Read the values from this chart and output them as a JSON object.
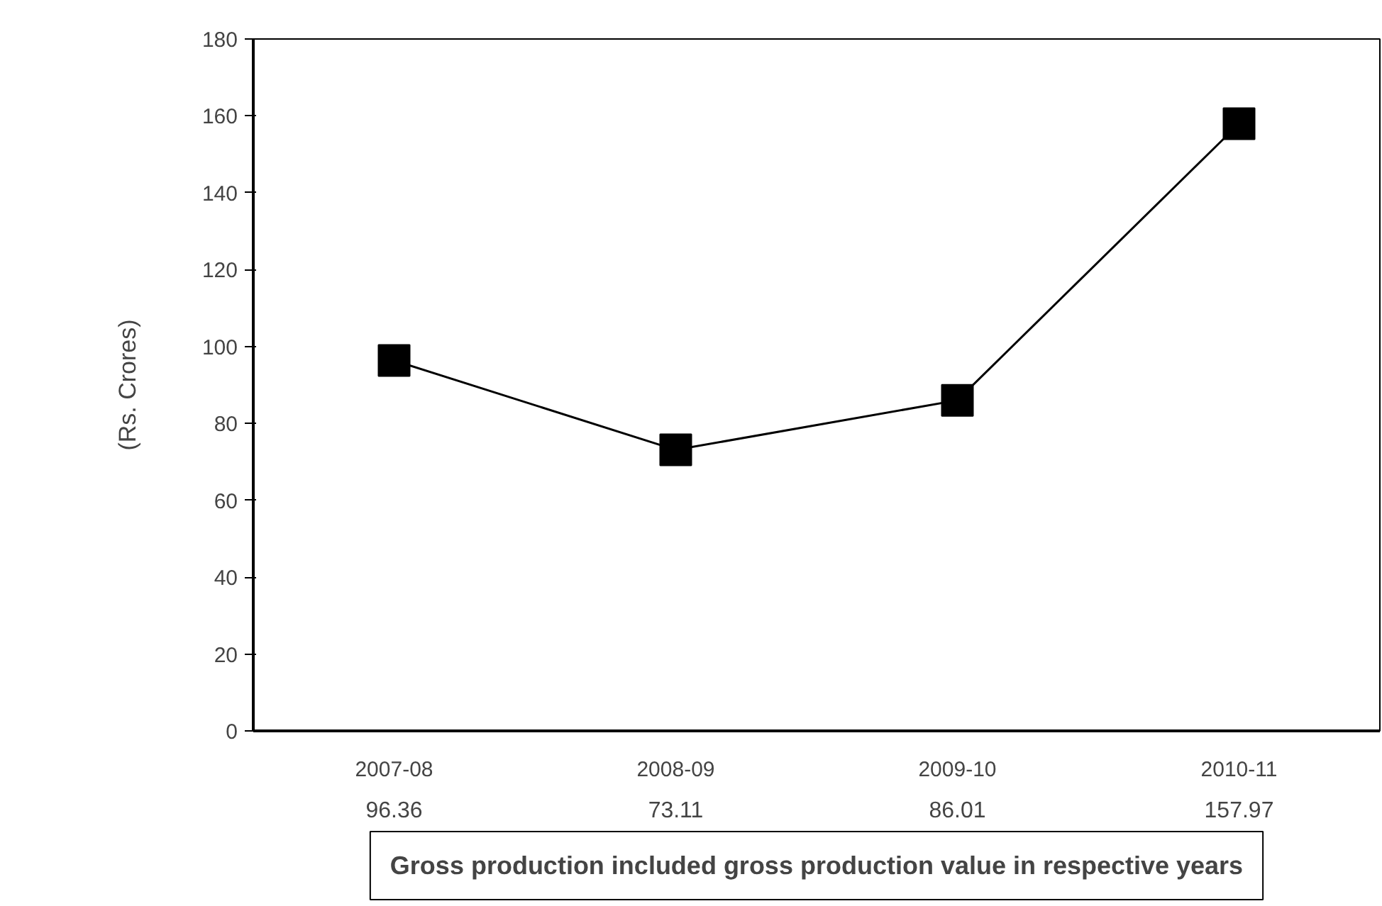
{
  "chart_data": {
    "type": "line",
    "ylabel": "(Rs. Crores)",
    "categories": [
      "2007-08",
      "2008-09",
      "2009-10",
      "2010-11"
    ],
    "series": [
      {
        "color": "#000000",
        "values": [
          96.36,
          73.11,
          86.01,
          157.97
        ]
      }
    ],
    "ylim": [
      0,
      180
    ],
    "yticks": [
      0,
      20,
      40,
      60,
      80,
      100,
      120,
      140,
      160,
      180
    ],
    "grid": false,
    "marker": "square",
    "line_style": "solid",
    "data_labels": true,
    "annotations": [
      "Gross production included gross production value in respective years"
    ]
  }
}
